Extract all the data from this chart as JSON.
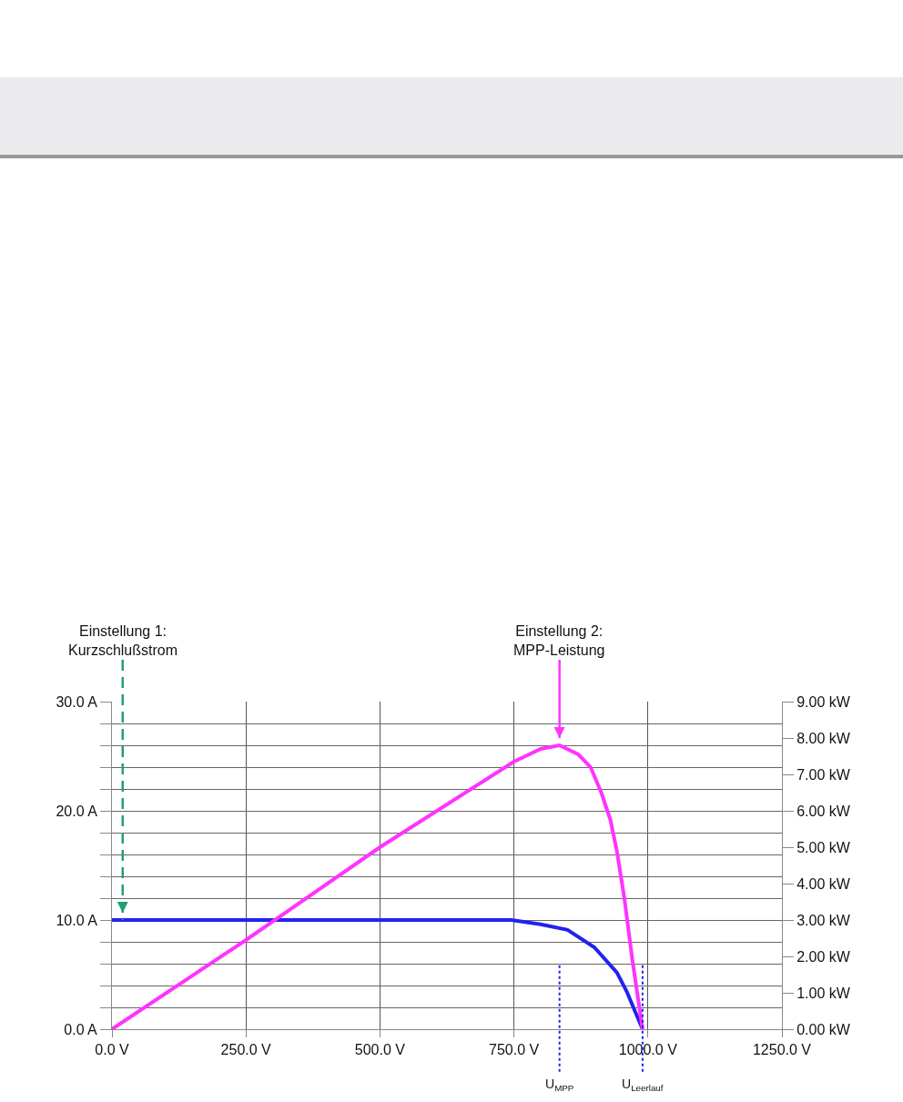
{
  "chart_data": {
    "type": "line",
    "x": [
      0,
      250,
      500,
      745,
      800,
      850,
      900,
      942,
      960,
      990
    ],
    "series": [
      {
        "color": "#2222ee",
        "values": [
          10,
          10,
          10,
          10,
          9.6,
          9.1,
          7.5,
          5.2,
          3.5,
          0
        ]
      },
      {
        "color": "#ff33ff",
        "axis": "y2",
        "x": [
          0,
          250,
          500,
          750,
          800,
          835,
          870,
          893,
          913,
          930,
          942,
          956,
          971,
          990
        ],
        "values": [
          0,
          2.45,
          5.0,
          7.35,
          7.7,
          7.8,
          7.55,
          7.2,
          6.5,
          5.75,
          4.9,
          3.6,
          1.9,
          0
        ]
      }
    ],
    "xlim": [
      0,
      1250
    ],
    "xticks": [
      {
        "value": 0,
        "label": "0.0 V"
      },
      {
        "value": 250,
        "label": "250.0 V"
      },
      {
        "value": 500,
        "label": "500.0 V"
      },
      {
        "value": 750,
        "label": "750.0 V"
      },
      {
        "value": 1000,
        "label": "1000.0 V"
      },
      {
        "value": 1250,
        "label": "1250.0 V"
      }
    ],
    "ylim": [
      0,
      30
    ],
    "yticks": [
      {
        "value": 0,
        "label": "0.0 A"
      },
      {
        "value": 2,
        "label": null
      },
      {
        "value": 4,
        "label": null
      },
      {
        "value": 6,
        "label": null
      },
      {
        "value": 8,
        "label": null
      },
      {
        "value": 10,
        "label": "10.0 A"
      },
      {
        "value": 12,
        "label": null
      },
      {
        "value": 14,
        "label": null
      },
      {
        "value": 16,
        "label": null
      },
      {
        "value": 18,
        "label": null
      },
      {
        "value": 20,
        "label": "20.0 A"
      },
      {
        "value": 22,
        "label": null
      },
      {
        "value": 24,
        "label": null
      },
      {
        "value": 26,
        "label": null
      },
      {
        "value": 28,
        "label": null
      },
      {
        "value": 30,
        "label": "30.0 A"
      }
    ],
    "y2lim": [
      0,
      9
    ],
    "y2ticks": [
      {
        "value": 0,
        "label": "0.00 kW"
      },
      {
        "value": 1,
        "label": "1.00 kW"
      },
      {
        "value": 2,
        "label": "2.00 kW"
      },
      {
        "value": 3,
        "label": "3.00 kW"
      },
      {
        "value": 4,
        "label": "4.00 kW"
      },
      {
        "value": 5,
        "label": "5.00 kW"
      },
      {
        "value": 6,
        "label": "6.00 kW"
      },
      {
        "value": 7,
        "label": "7.00 kW"
      },
      {
        "value": 8,
        "label": "8.00 kW"
      },
      {
        "value": 9,
        "label": "9.00 kW"
      }
    ],
    "grid": true,
    "line_style": "solid",
    "annotations": [
      {
        "text": "Einstellung 1:\nKurzschlußstrom",
        "x": 20,
        "y": 10
      },
      {
        "text": "Einstellung 2:\nMPP-Leistung",
        "x": 835,
        "y": 26
      }
    ],
    "ref_lines": [
      {
        "axis": "x",
        "value": 835,
        "label": "U$_{MPP}$",
        "color": "#2222ee",
        "line_style": "dotted"
      },
      {
        "axis": "x",
        "value": 990,
        "label": "U$_{Leerlauf}$",
        "color": "#2222ee",
        "line_style": "dotted"
      }
    ]
  }
}
